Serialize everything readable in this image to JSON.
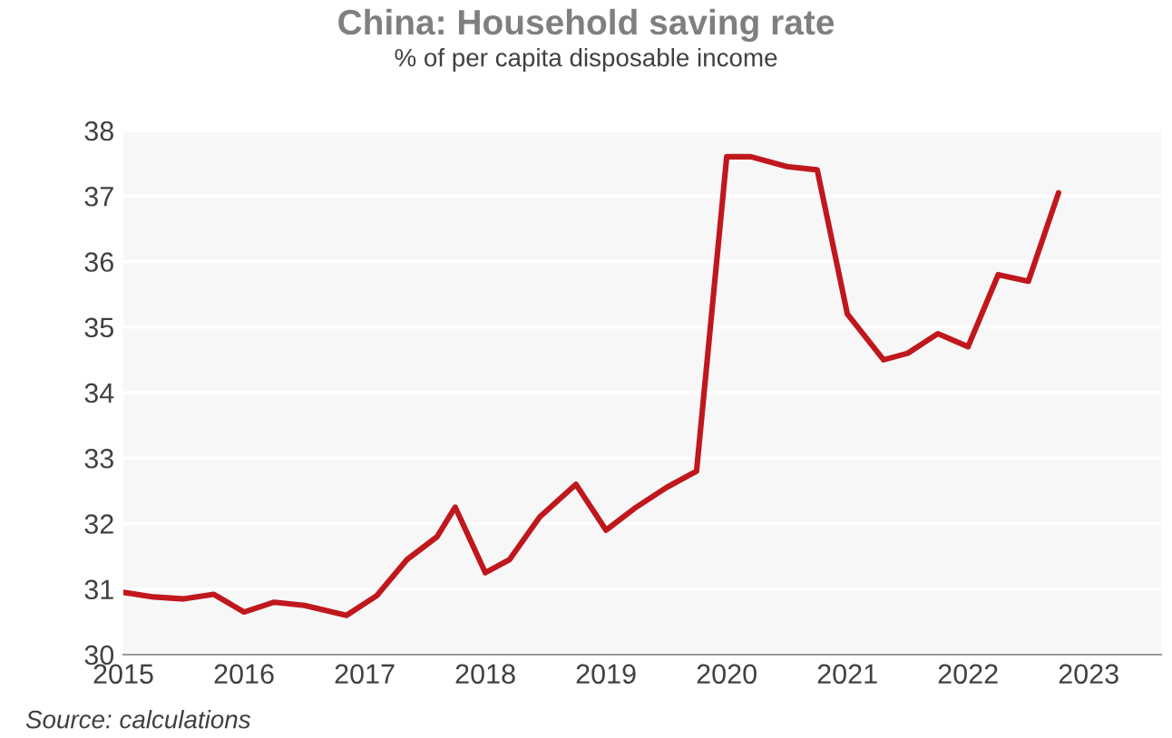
{
  "chart_data": {
    "type": "line",
    "title": "China: Household saving rate",
    "subtitle": "% of per capita disposable income",
    "x": [
      2015.0,
      2015.25,
      2015.5,
      2015.75,
      2016.0,
      2016.25,
      2016.5,
      2016.85,
      2017.1,
      2017.35,
      2017.6,
      2017.75,
      2018.0,
      2018.2,
      2018.45,
      2018.75,
      2019.0,
      2019.25,
      2019.5,
      2019.75,
      2020.0,
      2020.2,
      2020.5,
      2020.75,
      2021.0,
      2021.3,
      2021.5,
      2021.75,
      2022.0,
      2022.25,
      2022.5,
      2022.75
    ],
    "series": [
      {
        "color": "#c0171d",
        "values": [
          30.95,
          30.88,
          30.85,
          30.92,
          30.65,
          30.8,
          30.75,
          30.6,
          30.9,
          31.45,
          31.8,
          32.25,
          31.25,
          31.45,
          32.1,
          32.6,
          31.9,
          32.25,
          32.55,
          32.8,
          37.6,
          37.6,
          37.45,
          37.4,
          35.2,
          34.5,
          34.6,
          34.9,
          34.7,
          35.8,
          35.7,
          37.05
        ]
      }
    ],
    "xlim": [
      2015,
      2023.6
    ],
    "xticks": [
      2015,
      2016,
      2017,
      2018,
      2019,
      2020,
      2021,
      2022,
      2023
    ],
    "ylim": [
      30,
      38
    ],
    "yticks": [
      30,
      31,
      32,
      33,
      34,
      35,
      36,
      37,
      38
    ],
    "grid": "y",
    "legend": false,
    "marker": "none",
    "line_style": "solid",
    "annotations": [
      "Source: calculations"
    ]
  }
}
